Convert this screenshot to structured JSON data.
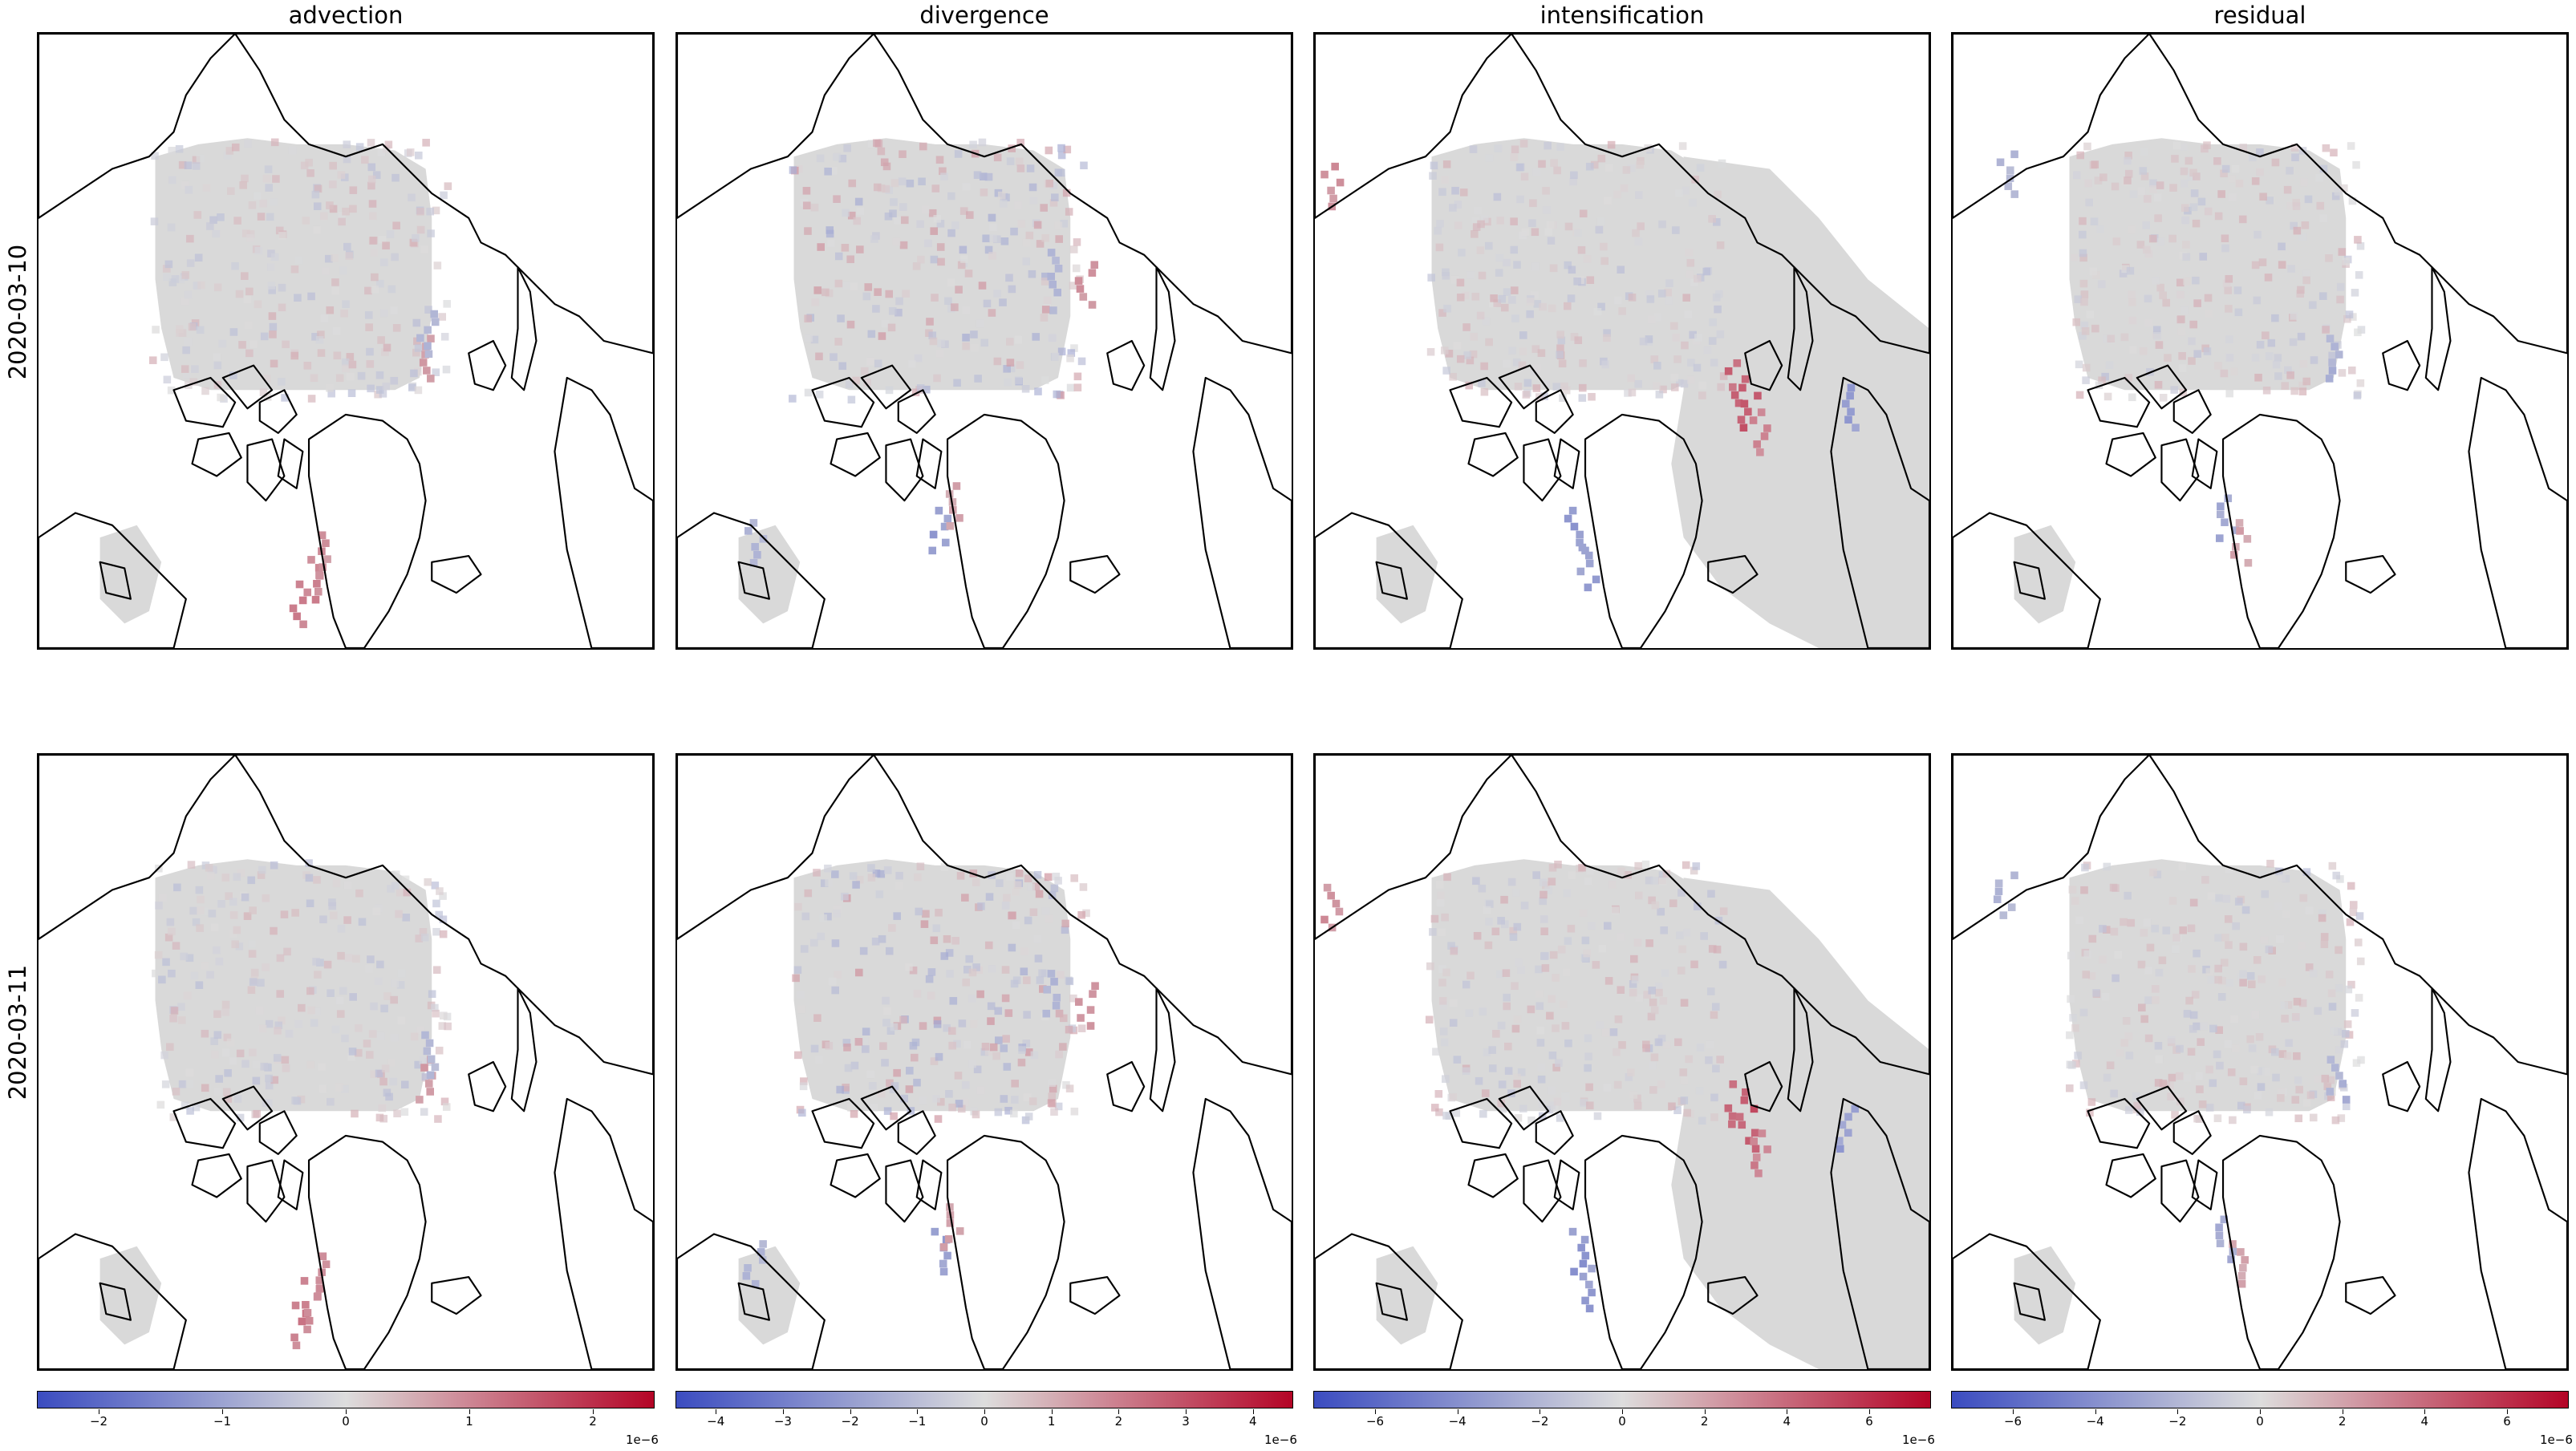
{
  "columns": [
    "advection",
    "divergence",
    "intensification",
    "residual"
  ],
  "rows": [
    "2020-03-10",
    "2020-03-11"
  ],
  "colormap": {
    "low": "#3b4cc0",
    "mid": "#dddddd",
    "high": "#b40426",
    "ice_base": "#d9d9d9",
    "coast": "#000000"
  },
  "colorbars": [
    {
      "name": "advection",
      "min": -2.5,
      "max": 2.5,
      "ticks": [
        "−2",
        "−1",
        "0",
        "1",
        "2"
      ],
      "tick_values": [
        -2,
        -1,
        0,
        1,
        2
      ],
      "exponent": "1e−6"
    },
    {
      "name": "divergence",
      "min": -4.6,
      "max": 4.6,
      "ticks": [
        "−4",
        "−3",
        "−2",
        "−1",
        "0",
        "1",
        "2",
        "3",
        "4"
      ],
      "tick_values": [
        -4,
        -3,
        -2,
        -1,
        0,
        1,
        2,
        3,
        4
      ],
      "exponent": "1e−6"
    },
    {
      "name": "intensification",
      "min": -7.5,
      "max": 7.5,
      "ticks": [
        "−6",
        "−4",
        "−2",
        "0",
        "2",
        "4",
        "6"
      ],
      "tick_values": [
        -6,
        -4,
        -2,
        0,
        2,
        4,
        6
      ],
      "exponent": "1e−6"
    },
    {
      "name": "residual",
      "min": -7.5,
      "max": 7.5,
      "ticks": [
        "−6",
        "−4",
        "−2",
        "0",
        "2",
        "4",
        "6"
      ],
      "tick_values": [
        -6,
        -4,
        -2,
        0,
        2,
        4,
        6
      ],
      "exponent": "1e−6"
    }
  ]
}
